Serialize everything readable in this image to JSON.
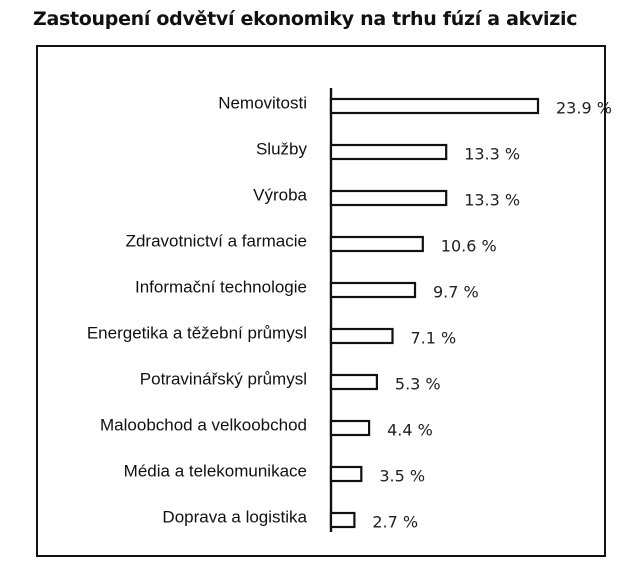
{
  "chart_data": {
    "type": "bar",
    "orientation": "horizontal",
    "title": "Zastoupení odvětví ekonomiky na trhu fúzí a akvizic",
    "categories": [
      "Nemovitosti",
      "Služby",
      "Výroba",
      "Zdravotnictví a farmacie",
      "Informační technologie",
      "Energetika a těžební průmysl",
      "Potravinářský průmysl",
      "Maloobchod a velkoobchod",
      "Média a telekomunikace",
      "Doprava a logistika"
    ],
    "values": [
      23.9,
      13.3,
      13.3,
      10.6,
      9.7,
      7.1,
      5.3,
      4.4,
      3.5,
      2.7
    ],
    "value_labels": [
      "23.9 %",
      "13.3 %",
      "13.3 %",
      "10.6 %",
      "9.7 %",
      "7.1 %",
      "5.3 %",
      "4.4 %",
      "3.5 %",
      "2.7 %"
    ],
    "unit": "%",
    "xlabel": "",
    "ylabel": "",
    "xlim": [
      0,
      23.9
    ],
    "grid": false,
    "legend": "none",
    "colors": {
      "bar_fill": "#ffffff",
      "bar_stroke": "#111111",
      "text": "#111111"
    }
  }
}
